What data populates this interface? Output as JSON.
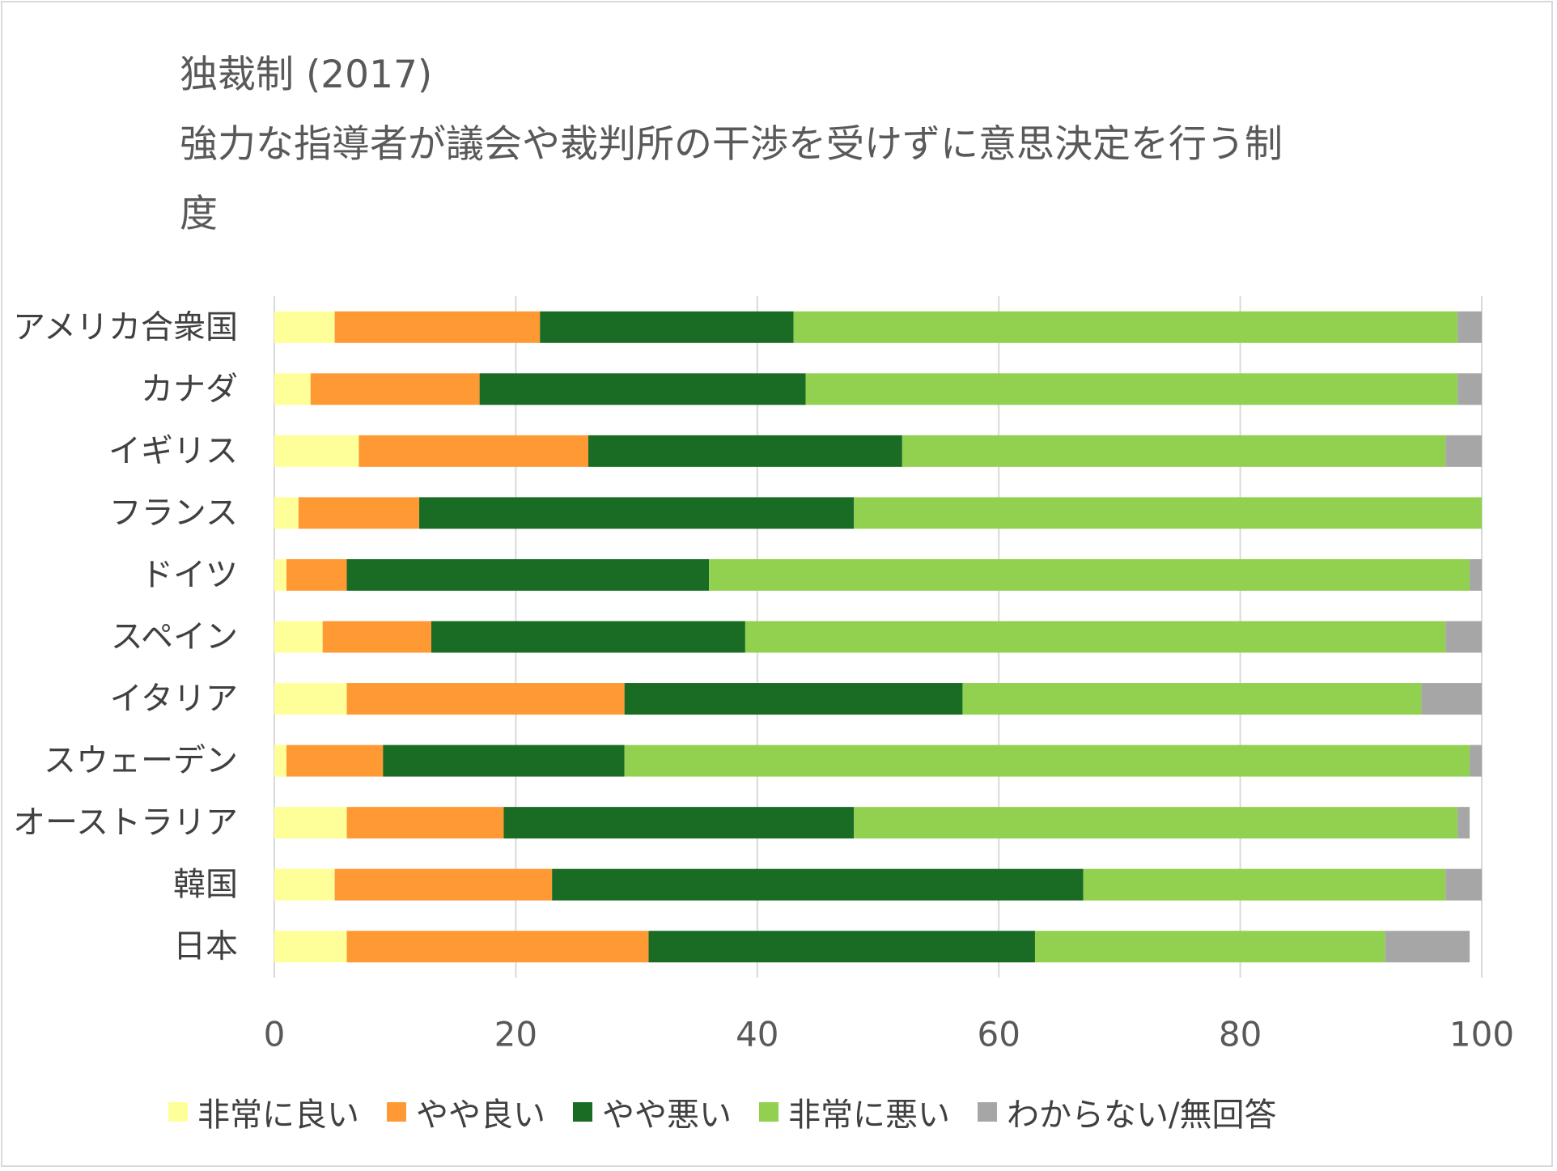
{
  "chart_data": {
    "type": "bar",
    "orientation": "horizontal",
    "stacked": true,
    "title": "独裁制 (2017)",
    "subtitle": [
      "強力な指導者が議会や裁判所の干渉を受けずに意思決定を行う制",
      "度"
    ],
    "categories": [
      "アメリカ合衆国",
      "カナダ",
      "イギリス",
      "フランス",
      "ドイツ",
      "スペイン",
      "イタリア",
      "スウェーデン",
      "オーストラリア",
      "韓国",
      "日本"
    ],
    "series": [
      {
        "name": "非常に良い",
        "color": "#ffff99",
        "values": [
          5,
          3,
          7,
          2,
          1,
          4,
          6,
          1,
          6,
          5,
          6
        ]
      },
      {
        "name": "やや良い",
        "color": "#ff9933",
        "values": [
          17,
          14,
          19,
          10,
          5,
          9,
          23,
          8,
          13,
          18,
          25
        ]
      },
      {
        "name": "やや悪い",
        "color": "#1a6b24",
        "values": [
          21,
          27,
          26,
          36,
          30,
          26,
          28,
          20,
          29,
          44,
          32
        ]
      },
      {
        "name": "非常に悪い",
        "color": "#92d050",
        "values": [
          55,
          54,
          45,
          52,
          63,
          58,
          38,
          70,
          50,
          30,
          29
        ]
      },
      {
        "name": "わからない/無回答",
        "color": "#a6a6a6",
        "values": [
          2,
          2,
          3,
          0,
          1,
          3,
          5,
          1,
          1,
          3,
          7
        ]
      }
    ],
    "xlim": [
      0,
      100
    ],
    "xticks": [
      0,
      20,
      40,
      60,
      80,
      100
    ],
    "grid": "vertical",
    "legend_position": "bottom"
  }
}
